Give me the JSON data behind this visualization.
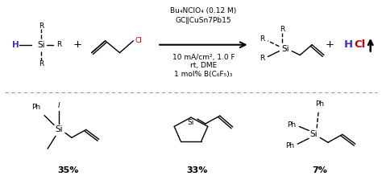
{
  "bg_color": "#ffffff",
  "conditions": [
    "Bu₄NClO₄ (0.12 M)",
    "GC‖CuSn7Pb15",
    "10 mA/cm², 1.0 F",
    "rt, DME",
    "1 mol% B(C₆F₅)₃"
  ],
  "divider_color": "#999999",
  "yields": [
    "35%",
    "33%",
    "7%"
  ]
}
